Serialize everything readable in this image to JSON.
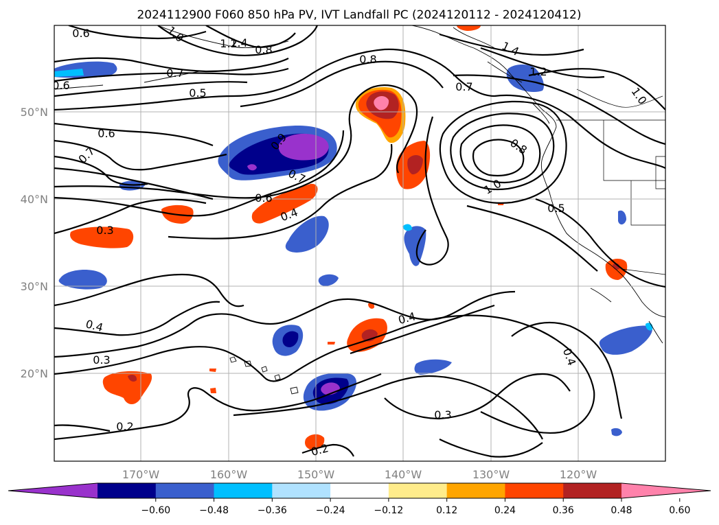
{
  "title": "2024112900 F060 850 hPa PV, IVT Landfall PC (2024120112 - 2024120412)",
  "map": {
    "lon_labels": [
      "170°W",
      "160°W",
      "150°W",
      "140°W",
      "130°W",
      "120°W"
    ],
    "lat_labels": [
      "50°N",
      "40°N",
      "30°N",
      "20°N"
    ],
    "grid": true
  },
  "colorbar": {
    "orientation": "horizontal",
    "extend": "both",
    "tick_labels": [
      "−0.60",
      "−0.48",
      "−0.36",
      "−0.24",
      "−0.12",
      "0.12",
      "0.24",
      "0.36",
      "0.48",
      "0.60"
    ],
    "colors": [
      "#9932cc",
      "#00008b",
      "#3a5fcd",
      "#00bfff",
      "#b0e2ff",
      "#ffffff",
      "#ffec8b",
      "#ffa500",
      "#ff4500",
      "#b22222",
      "#ff82ab"
    ]
  },
  "contour_labels": [
    "0.6",
    "1.0",
    "1.2",
    "1.4",
    "0.8",
    "0.7",
    "0.6",
    "0.5",
    "0.8",
    "0.7",
    "1.4",
    "1.2",
    "1.0",
    "0.6",
    "0.7",
    "0.9",
    "0.8",
    "1.0",
    "0.7",
    "0.6",
    "0.4",
    "0.5",
    "0.3",
    "0.4",
    "0.3",
    "0.4",
    "0.4",
    "0.3",
    "0.2",
    "0.2"
  ]
}
